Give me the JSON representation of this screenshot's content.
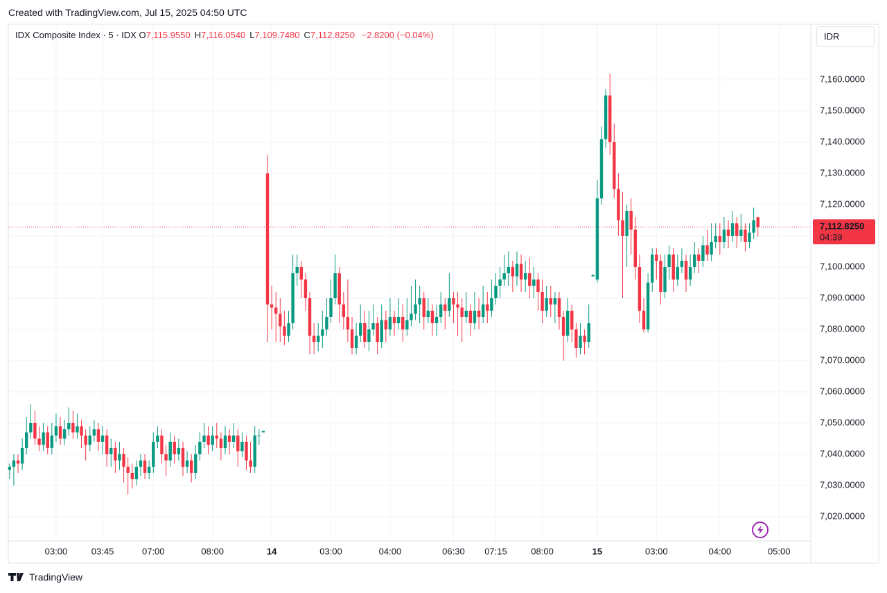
{
  "header": {
    "created": "Created with TradingView.com, Jul 15, 2025 04:50 UTC"
  },
  "chart_data": {
    "type": "candlestick",
    "title": "IDX Composite Index · 5 · IDX",
    "ohlc_legend": [
      {
        "key": "O",
        "value": "7,115.9550"
      },
      {
        "key": "H",
        "value": "7,116.0540"
      },
      {
        "key": "L",
        "value": "7,109.7480"
      },
      {
        "key": "C",
        "value": "7,112.8250"
      }
    ],
    "change": "−2.8200 (−0.04%)",
    "currency": "IDR",
    "up_color": "#089981",
    "down_color": "#f23645",
    "grid": true,
    "xlim": [
      -0.3,
      189.5
    ],
    "xticks": [
      {
        "value": 11,
        "label": "03:00"
      },
      {
        "value": 22,
        "label": "03:45"
      },
      {
        "value": 34,
        "label": "07:00"
      },
      {
        "value": 48,
        "label": "08:00"
      },
      {
        "value": 62,
        "label": "14"
      },
      {
        "value": 76,
        "label": "03:00"
      },
      {
        "value": 90,
        "label": "04:00"
      },
      {
        "value": 105,
        "label": "06:30"
      },
      {
        "value": 115,
        "label": "07:15"
      },
      {
        "value": 126,
        "label": "08:00"
      },
      {
        "value": 139,
        "label": "15"
      },
      {
        "value": 153,
        "label": "03:00"
      },
      {
        "value": 168,
        "label": "04:00"
      },
      {
        "value": 182,
        "label": "05:00"
      }
    ],
    "ylim": [
      7012.2,
      7177.8
    ],
    "yticks": [
      {
        "value": 7020,
        "label": "7,020.0000"
      },
      {
        "value": 7030,
        "label": "7,030.0000"
      },
      {
        "value": 7040,
        "label": "7,040.0000"
      },
      {
        "value": 7050,
        "label": "7,050.0000"
      },
      {
        "value": 7060,
        "label": "7,060.0000"
      },
      {
        "value": 7070,
        "label": "7,070.0000"
      },
      {
        "value": 7080,
        "label": "7,080.0000"
      },
      {
        "value": 7090,
        "label": "7,090.0000"
      },
      {
        "value": 7100,
        "label": "7,100.0000"
      },
      {
        "value": 7110,
        "label": "7,110.0000"
      },
      {
        "value": 7120,
        "label": "7,120.0000"
      },
      {
        "value": 7130,
        "label": "7,130.0000"
      },
      {
        "value": 7140,
        "label": "7,140.0000"
      },
      {
        "value": 7150,
        "label": "7,150.0000"
      },
      {
        "value": 7160,
        "label": "7,160.0000"
      }
    ],
    "last_price": {
      "value": 7112.825,
      "label": "7,112.8250",
      "countdown": "04:39"
    },
    "candles": [
      [
        7035,
        7037,
        7032,
        7036
      ],
      [
        7036,
        7040,
        7030,
        7038
      ],
      [
        7038,
        7040,
        7034,
        7037
      ],
      [
        7037,
        7045,
        7035,
        7042
      ],
      [
        7042,
        7052,
        7040,
        7047
      ],
      [
        7047,
        7056,
        7045,
        7050
      ],
      [
        7050,
        7054,
        7043,
        7045
      ],
      [
        7045,
        7049,
        7041,
        7043
      ],
      [
        7043,
        7050,
        7041,
        7047
      ],
      [
        7047,
        7049,
        7040,
        7042
      ],
      [
        7042,
        7050,
        7040,
        7046
      ],
      [
        7046,
        7053,
        7044,
        7049
      ],
      [
        7049,
        7052,
        7043,
        7045
      ],
      [
        7045,
        7051,
        7043,
        7048
      ],
      [
        7048,
        7055,
        7046,
        7050
      ],
      [
        7050,
        7054,
        7045,
        7047
      ],
      [
        7047,
        7053,
        7045,
        7049
      ],
      [
        7049,
        7051,
        7042,
        7046
      ],
      [
        7046,
        7048,
        7038,
        7043
      ],
      [
        7043,
        7049,
        7041,
        7046
      ],
      [
        7046,
        7051,
        7044,
        7048
      ],
      [
        7048,
        7050,
        7041,
        7044
      ],
      [
        7044,
        7049,
        7040,
        7046
      ],
      [
        7046,
        7048,
        7036,
        7040
      ],
      [
        7040,
        7045,
        7036,
        7042
      ],
      [
        7042,
        7044,
        7034,
        7038
      ],
      [
        7038,
        7044,
        7035,
        7040
      ],
      [
        7040,
        7042,
        7031,
        7036
      ],
      [
        7036,
        7039,
        7027,
        7034
      ],
      [
        7034,
        7037,
        7029,
        7032
      ],
      [
        7032,
        7038,
        7030,
        7036
      ],
      [
        7036,
        7040,
        7033,
        7038
      ],
      [
        7038,
        7040,
        7032,
        7034
      ],
      [
        7034,
        7038,
        7032,
        7036
      ],
      [
        7036,
        7047,
        7034,
        7044
      ],
      [
        7044,
        7049,
        7042,
        7046
      ],
      [
        7046,
        7048,
        7037,
        7040
      ],
      [
        7040,
        7043,
        7033,
        7038
      ],
      [
        7038,
        7047,
        7036,
        7044
      ],
      [
        7044,
        7046,
        7037,
        7040
      ],
      [
        7040,
        7045,
        7038,
        7042
      ],
      [
        7042,
        7044,
        7033,
        7036
      ],
      [
        7036,
        7041,
        7034,
        7038
      ],
      [
        7038,
        7040,
        7031,
        7034
      ],
      [
        7034,
        7043,
        7032,
        7040
      ],
      [
        7040,
        7047,
        7038,
        7044
      ],
      [
        7044,
        7050,
        7042,
        7046
      ],
      [
        7046,
        7049,
        7040,
        7043
      ],
      [
        7043,
        7049,
        7041,
        7046
      ],
      [
        7046,
        7050,
        7042,
        7045
      ],
      [
        7045,
        7047,
        7038,
        7042
      ],
      [
        7042,
        7049,
        7040,
        7046
      ],
      [
        7046,
        7048,
        7040,
        7044
      ],
      [
        7044,
        7050,
        7042,
        7046
      ],
      [
        7046,
        7048,
        7036,
        7041
      ],
      [
        7041,
        7047,
        7039,
        7044
      ],
      [
        7044,
        7046,
        7035,
        7038
      ],
      [
        7038,
        7044,
        7034,
        7036
      ],
      [
        7036,
        7049,
        7034,
        7046
      ],
      [
        7046,
        7048,
        7043,
        7046
      ],
      [
        7047,
        7047.5,
        7047,
        7047.5
      ],
      [
        7130,
        7136,
        7076,
        7088
      ],
      [
        7088,
        7094,
        7080,
        7087
      ],
      [
        7087,
        7092,
        7076,
        7085
      ],
      [
        7085,
        7090,
        7076,
        7081
      ],
      [
        7081,
        7086,
        7075,
        7078
      ],
      [
        7078,
        7086,
        7076,
        7082
      ],
      [
        7082,
        7104,
        7080,
        7098
      ],
      [
        7098,
        7104,
        7094,
        7100
      ],
      [
        7100,
        7102,
        7090,
        7096
      ],
      [
        7096,
        7098,
        7086,
        7090
      ],
      [
        7090,
        7092,
        7072,
        7078
      ],
      [
        7078,
        7082,
        7072,
        7076
      ],
      [
        7076,
        7082,
        7073,
        7078
      ],
      [
        7078,
        7086,
        7074,
        7080
      ],
      [
        7080,
        7090,
        7078,
        7084
      ],
      [
        7084,
        7096,
        7082,
        7090
      ],
      [
        7090,
        7104,
        7088,
        7098
      ],
      [
        7098,
        7100,
        7082,
        7088
      ],
      [
        7088,
        7092,
        7080,
        7084
      ],
      [
        7084,
        7096,
        7076,
        7080
      ],
      [
        7080,
        7084,
        7072,
        7074
      ],
      [
        7074,
        7082,
        7072,
        7078
      ],
      [
        7078,
        7088,
        7076,
        7082
      ],
      [
        7082,
        7086,
        7074,
        7076
      ],
      [
        7076,
        7086,
        7073,
        7080
      ],
      [
        7080,
        7088,
        7078,
        7082
      ],
      [
        7082,
        7084,
        7072,
        7076
      ],
      [
        7076,
        7088,
        7074,
        7083
      ],
      [
        7083,
        7086,
        7076,
        7080
      ],
      [
        7080,
        7090,
        7078,
        7084
      ],
      [
        7084,
        7086,
        7078,
        7082
      ],
      [
        7082,
        7090,
        7080,
        7084
      ],
      [
        7084,
        7088,
        7076,
        7080
      ],
      [
        7080,
        7090,
        7078,
        7083
      ],
      [
        7083,
        7094,
        7081,
        7085
      ],
      [
        7085,
        7096,
        7083,
        7088
      ],
      [
        7088,
        7094,
        7082,
        7090
      ],
      [
        7090,
        7092,
        7080,
        7084
      ],
      [
        7084,
        7090,
        7082,
        7086
      ],
      [
        7086,
        7088,
        7078,
        7082
      ],
      [
        7082,
        7088,
        7078,
        7084
      ],
      [
        7084,
        7092,
        7082,
        7088
      ],
      [
        7088,
        7090,
        7080,
        7086
      ],
      [
        7086,
        7098,
        7084,
        7090
      ],
      [
        7090,
        7092,
        7082,
        7088
      ],
      [
        7088,
        7092,
        7078,
        7087
      ],
      [
        7087,
        7090,
        7076,
        7084
      ],
      [
        7084,
        7092,
        7082,
        7086
      ],
      [
        7086,
        7088,
        7078,
        7082
      ],
      [
        7082,
        7092,
        7080,
        7086
      ],
      [
        7086,
        7090,
        7080,
        7084
      ],
      [
        7084,
        7094,
        7082,
        7088
      ],
      [
        7088,
        7092,
        7082,
        7086
      ],
      [
        7086,
        7096,
        7084,
        7090
      ],
      [
        7090,
        7098,
        7088,
        7094
      ],
      [
        7094,
        7100,
        7090,
        7096
      ],
      [
        7096,
        7104,
        7094,
        7098
      ],
      [
        7098,
        7105,
        7094,
        7100
      ],
      [
        7100,
        7102,
        7092,
        7097
      ],
      [
        7097,
        7105,
        7094,
        7101
      ],
      [
        7101,
        7104,
        7092,
        7096
      ],
      [
        7096,
        7102,
        7092,
        7098
      ],
      [
        7098,
        7103,
        7090,
        7094
      ],
      [
        7094,
        7100,
        7090,
        7096
      ],
      [
        7096,
        7098,
        7086,
        7092
      ],
      [
        7092,
        7096,
        7082,
        7086
      ],
      [
        7086,
        7094,
        7084,
        7090
      ],
      [
        7090,
        7094,
        7084,
        7088
      ],
      [
        7088,
        7092,
        7082,
        7090
      ],
      [
        7090,
        7092,
        7080,
        7084
      ],
      [
        7084,
        7086,
        7070,
        7078
      ],
      [
        7078,
        7090,
        7076,
        7086
      ],
      [
        7086,
        7088,
        7076,
        7080
      ],
      [
        7080,
        7082,
        7071,
        7074
      ],
      [
        7074,
        7082,
        7072,
        7078
      ],
      [
        7078,
        7080,
        7072,
        7076
      ],
      [
        7076,
        7088,
        7074,
        7082
      ],
      [
        7097,
        7097.5,
        7097,
        7097.5
      ],
      [
        7096,
        7128,
        7095,
        7122
      ],
      [
        7122,
        7145,
        7120,
        7141
      ],
      [
        7141,
        7157,
        7138,
        7155
      ],
      [
        7155,
        7162,
        7136,
        7140
      ],
      [
        7140,
        7146,
        7122,
        7125
      ],
      [
        7125,
        7130,
        7110,
        7115
      ],
      [
        7115,
        7124,
        7090,
        7110
      ],
      [
        7110,
        7120,
        7100,
        7118
      ],
      [
        7118,
        7122,
        7104,
        7112
      ],
      [
        7112,
        7116,
        7096,
        7100
      ],
      [
        7100,
        7104,
        7082,
        7086
      ],
      [
        7086,
        7090,
        7079,
        7080
      ],
      [
        7080,
        7098,
        7079,
        7095
      ],
      [
        7095,
        7106,
        7092,
        7104
      ],
      [
        7104,
        7106,
        7096,
        7102
      ],
      [
        7102,
        7104,
        7088,
        7092
      ],
      [
        7092,
        7104,
        7090,
        7100
      ],
      [
        7100,
        7107,
        7096,
        7104
      ],
      [
        7104,
        7106,
        7092,
        7096
      ],
      [
        7096,
        7104,
        7094,
        7100
      ],
      [
        7100,
        7106,
        7098,
        7102
      ],
      [
        7102,
        7104,
        7092,
        7096
      ],
      [
        7096,
        7104,
        7094,
        7100
      ],
      [
        7100,
        7108,
        7098,
        7104
      ],
      [
        7104,
        7106,
        7098,
        7102
      ],
      [
        7102,
        7110,
        7100,
        7107
      ],
      [
        7107,
        7112,
        7102,
        7104
      ],
      [
        7104,
        7114,
        7102,
        7108
      ],
      [
        7108,
        7114,
        7106,
        7110
      ],
      [
        7110,
        7114,
        7104,
        7108
      ],
      [
        7108,
        7116,
        7106,
        7112
      ],
      [
        7112,
        7115,
        7106,
        7110
      ],
      [
        7110,
        7118,
        7108,
        7114
      ],
      [
        7114,
        7116,
        7106,
        7110
      ],
      [
        7110,
        7117,
        7108,
        7112
      ],
      [
        7112,
        7114,
        7105,
        7108
      ],
      [
        7108,
        7114,
        7106,
        7111
      ],
      [
        7111,
        7119,
        7109,
        7115
      ],
      [
        7115.955,
        7116.054,
        7109.748,
        7112.825
      ]
    ]
  },
  "footer": {
    "brand": "TradingView"
  }
}
